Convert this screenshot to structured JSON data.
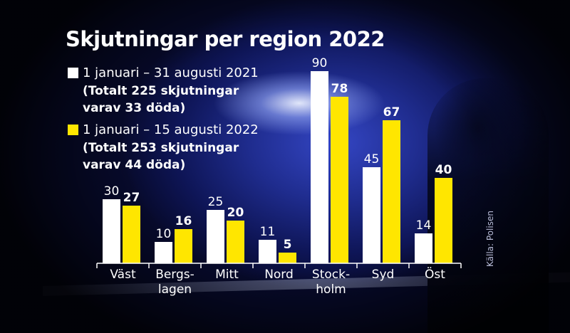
{
  "title": "Skjutningar per region 2022",
  "legend": [
    {
      "label": "1 januari – 31 augusti 2021",
      "note_lines": [
        "(Totalt 225 skjutningar",
        "varav 33 döda)"
      ],
      "color": "#ffffff"
    },
    {
      "label": "1 januari – 15 augusti 2022",
      "note_lines": [
        "(Totalt 253 skjutningar",
        "varav 44 döda)"
      ],
      "color": "#ffe600"
    }
  ],
  "source": "Källa: Polisen",
  "chart_data": {
    "type": "bar",
    "title": "Skjutningar per region 2022",
    "categories": [
      [
        "Väst"
      ],
      [
        "Bergs-",
        "lagen"
      ],
      [
        "Mitt"
      ],
      [
        "Nord"
      ],
      [
        "Stock-",
        "holm"
      ],
      [
        "Syd"
      ],
      [
        "Öst"
      ]
    ],
    "series": [
      {
        "name": "1 januari – 31 augusti 2021",
        "color": "#ffffff",
        "values": [
          30,
          10,
          25,
          11,
          90,
          45,
          14
        ]
      },
      {
        "name": "1 januari – 15 augusti 2022",
        "color": "#ffe600",
        "values": [
          27,
          16,
          20,
          5,
          78,
          67,
          40
        ]
      }
    ],
    "ylim": [
      0,
      90
    ],
    "value_labels": {
      "2021": [
        "30",
        "10",
        "25",
        "11",
        "90",
        "45",
        "14"
      ],
      "2022": [
        "27",
        "16",
        "20",
        "5",
        "78",
        "67",
        "40"
      ]
    },
    "axis_color": "#ffffff",
    "legend_position": "top-left",
    "grid": false
  }
}
